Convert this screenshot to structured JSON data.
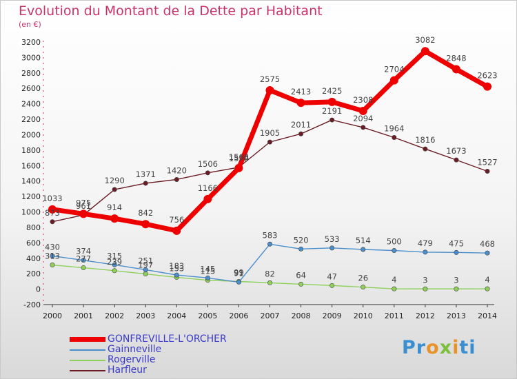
{
  "header": {
    "title": "Evolution du Montant de la Dette par Habitant",
    "subtitle": "(en €)"
  },
  "logo": {
    "text": "Proxiti",
    "letters": [
      "P",
      "r",
      "o",
      "x",
      "i",
      "ti"
    ]
  },
  "chart_data": {
    "type": "line",
    "title": "Evolution du Montant de la Dette par Habitant",
    "subtitle": "(en €)",
    "xlabel": "",
    "ylabel": "",
    "x": [
      "2000",
      "2001",
      "2002",
      "2003",
      "2004",
      "2005",
      "2006",
      "2007",
      "2008",
      "2009",
      "2010",
      "2011",
      "2012",
      "2013",
      "2014"
    ],
    "ylim": [
      -200,
      3200
    ],
    "yticks": [
      "-200",
      "0",
      "200",
      "400",
      "600",
      "800",
      "1000",
      "1200",
      "1400",
      "1600",
      "1800",
      "2000",
      "2200",
      "2400",
      "2600",
      "2800",
      "3000",
      "3200"
    ],
    "grid": false,
    "legend_position": "bottom-left",
    "series": [
      {
        "name": "Harfleur",
        "color": "#6b1c24",
        "values": [
          873,
          961,
          1290,
          1371,
          1420,
          1506,
          1578,
          1905,
          2011,
          2191,
          2094,
          1964,
          1816,
          1673,
          1527
        ]
      },
      {
        "name": "Rogerville",
        "color": "#8ed05a",
        "values": [
          313,
          277,
          239,
          197,
          153,
          115,
          99,
          82,
          64,
          47,
          26,
          4,
          3,
          3,
          4
        ]
      },
      {
        "name": "Gainneville",
        "color": "#4a8ecc",
        "values": [
          430,
          374,
          315,
          251,
          183,
          145,
          91,
          583,
          520,
          533,
          514,
          500,
          479,
          475,
          468
        ]
      },
      {
        "name": "GONFREVILLE-L'ORCHER",
        "color": "#ee0000",
        "values": [
          1033,
          975,
          914,
          842,
          756,
          1166,
          1568,
          2575,
          2413,
          2425,
          2308,
          2704,
          3082,
          2848,
          2623
        ]
      }
    ],
    "legend": [
      "GONFREVILLE-L'ORCHER",
      "Gainneville",
      "Rogerville",
      "Harfleur"
    ]
  }
}
